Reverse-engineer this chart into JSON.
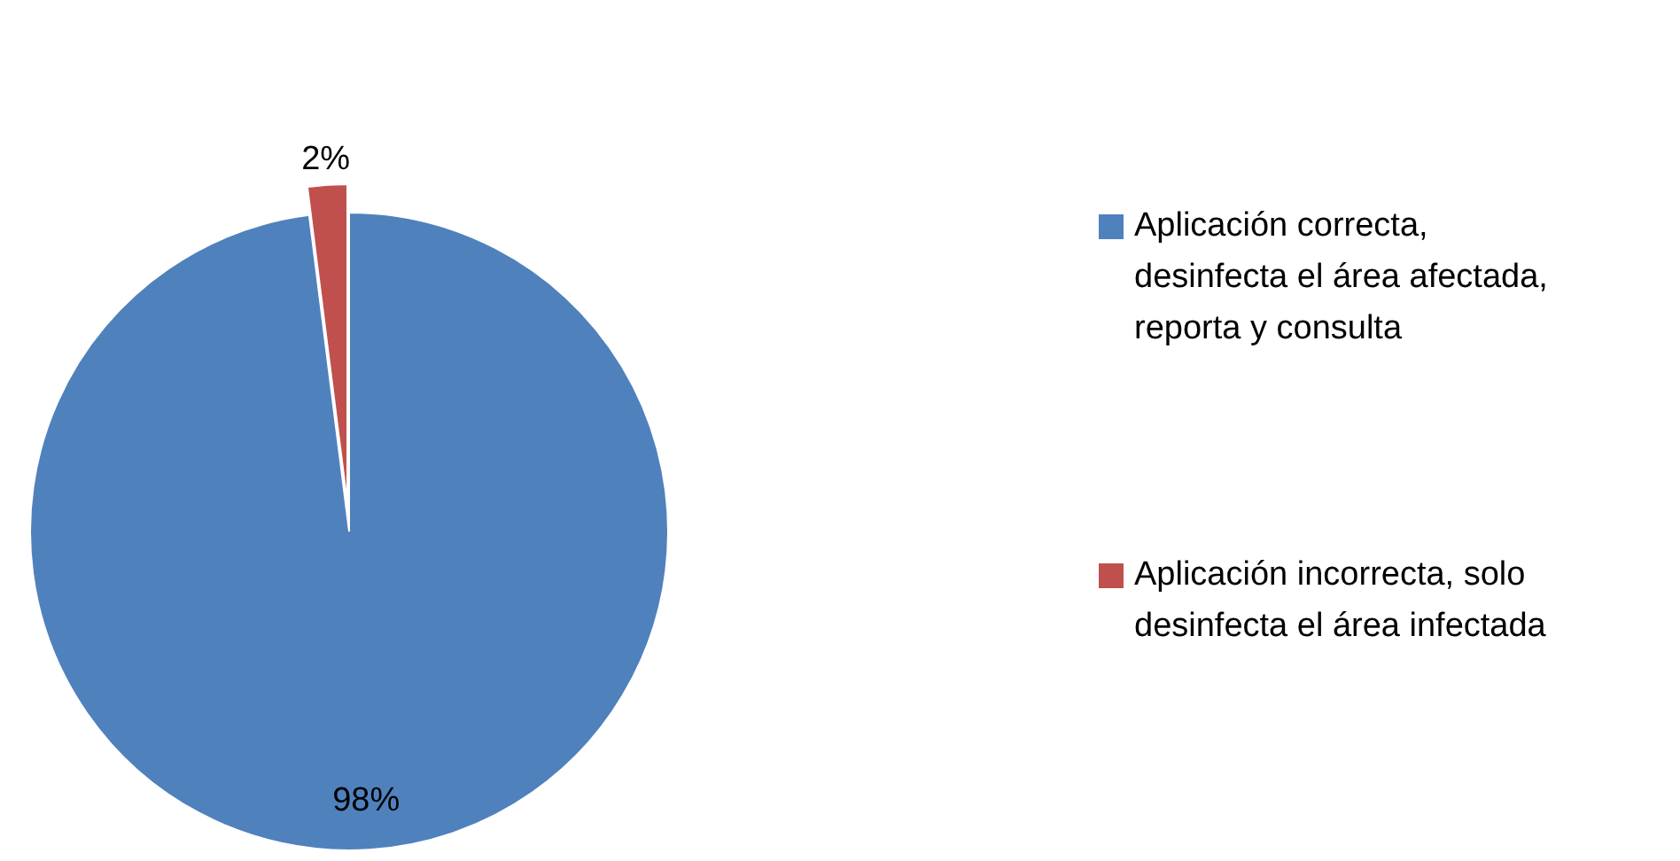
{
  "chart_data": {
    "type": "pie",
    "categories": [
      "Aplicación correcta, desinfecta el área afectada, reporta y consulta",
      "Aplicación incorrecta, solo desinfecta el área infectada"
    ],
    "values": [
      98,
      2
    ],
    "colors": [
      "#4f81bd",
      "#c0504d"
    ],
    "data_labels": true,
    "value_labels": [
      "98%",
      "2%"
    ],
    "legend": "right"
  }
}
